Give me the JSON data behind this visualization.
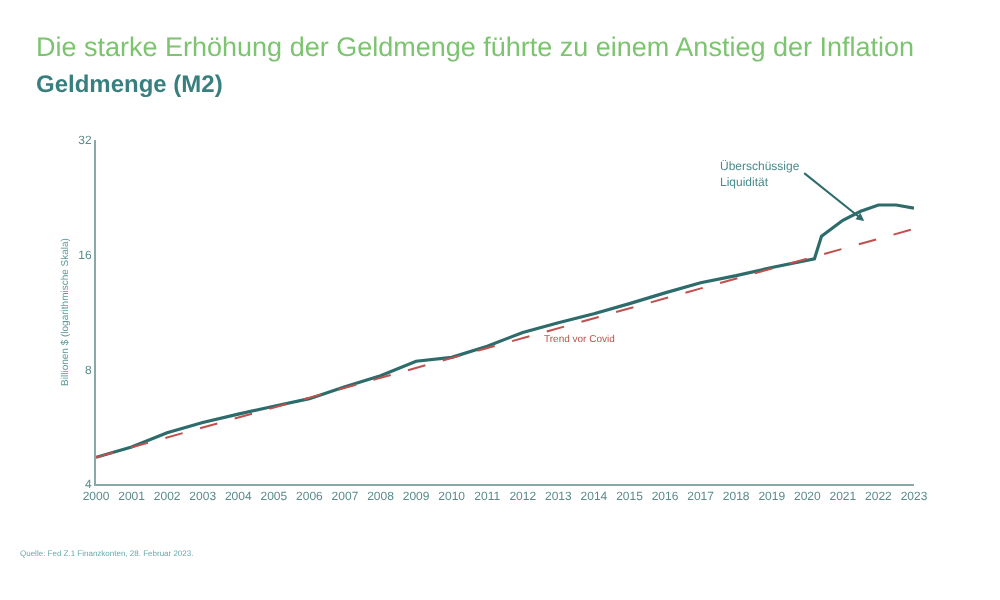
{
  "chart_data": {
    "type": "line",
    "title": "Die starke Erhöhung der Geldmenge führte zu einem Anstieg der Inflation",
    "subtitle": "Geldmenge (M2)",
    "ylabel": "Billionen $ (logarithmische Skala)",
    "series": [
      {
        "color": "#2e6b6b",
        "x": [
          2000,
          2001,
          2002,
          2003,
          2004,
          2005,
          2006,
          2007,
          2008,
          2009,
          2010,
          2011,
          2012,
          2013,
          2014,
          2015,
          2016,
          2017,
          2018,
          2019,
          2020.2,
          2020.4,
          2021,
          2021.5,
          2022,
          2022.5,
          2023
        ],
        "values": [
          4.7,
          5.0,
          5.45,
          5.8,
          6.1,
          6.4,
          6.7,
          7.2,
          7.7,
          8.4,
          8.6,
          9.2,
          10.0,
          10.6,
          11.2,
          11.9,
          12.7,
          13.5,
          14.1,
          14.8,
          15.6,
          17.9,
          19.7,
          20.8,
          21.6,
          21.6,
          21.2
        ]
      },
      {
        "color": "#c0504d",
        "line_style": "dashed",
        "x": [
          2000,
          2023
        ],
        "values": [
          4.7,
          18.7
        ]
      }
    ],
    "log": "y",
    "ylim": [
      4,
      32
    ],
    "yticks": [
      4,
      8,
      16,
      32
    ],
    "xlim": [
      2000,
      2023
    ],
    "xticks": [
      2000,
      2001,
      2002,
      2003,
      2004,
      2005,
      2006,
      2007,
      2008,
      2009,
      2010,
      2011,
      2012,
      2013,
      2014,
      2015,
      2016,
      2017,
      2018,
      2019,
      2020,
      2021,
      2022,
      2023
    ],
    "annotations": [
      {
        "text": "Überschüssige Liquidität",
        "x": 2021.6,
        "y": 19.6
      },
      {
        "text": "Trend vor Covid",
        "x": 2013.6,
        "y": 10.6
      },
      "Quelle: Fed Z.1 Finanzkonten, 28. Februar 2023."
    ]
  }
}
